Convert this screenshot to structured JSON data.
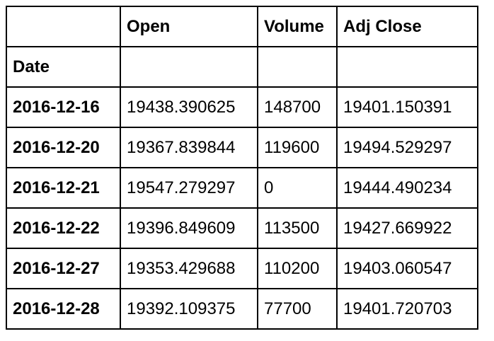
{
  "table": {
    "columns": [
      "",
      "Open",
      "Volume",
      "Adj Close"
    ],
    "index_name": "Date",
    "rows": [
      {
        "date": "2016-12-16",
        "open": "19438.390625",
        "volume": "148700",
        "adj_close": "19401.150391"
      },
      {
        "date": "2016-12-20",
        "open": "19367.839844",
        "volume": "119600",
        "adj_close": "19494.529297"
      },
      {
        "date": "2016-12-21",
        "open": "19547.279297",
        "volume": "0",
        "adj_close": "19444.490234"
      },
      {
        "date": "2016-12-22",
        "open": "19396.849609",
        "volume": "113500",
        "adj_close": "19427.669922"
      },
      {
        "date": "2016-12-27",
        "open": "19353.429688",
        "volume": "110200",
        "adj_close": "19403.060547"
      },
      {
        "date": "2016-12-28",
        "open": "19392.109375",
        "volume": "77700",
        "adj_close": "19401.720703"
      }
    ]
  }
}
